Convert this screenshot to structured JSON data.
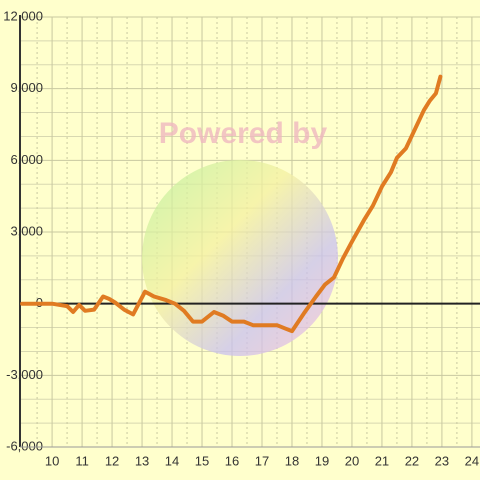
{
  "chart_data": {
    "type": "line",
    "watermark": "Powered by",
    "x": [
      9,
      10,
      10.5,
      10.7,
      10.9,
      11.1,
      11.4,
      11.7,
      11.9,
      12.1,
      12.4,
      12.7,
      13.1,
      13.4,
      13.8,
      14.1,
      14.4,
      14.7,
      15.0,
      15.4,
      15.7,
      16.0,
      16.4,
      16.7,
      17.0,
      17.5,
      17.8,
      18.0,
      18.4,
      18.8,
      19.1,
      19.4,
      19.7,
      20.0,
      20.4,
      20.7,
      21.0,
      21.3,
      21.5,
      21.8,
      22.1,
      22.4,
      22.6,
      22.8,
      22.95
    ],
    "series": [
      {
        "color": "#e07b22",
        "values": [
          0,
          0,
          -100,
          -350,
          -50,
          -300,
          -250,
          300,
          200,
          50,
          -250,
          -450,
          500,
          300,
          150,
          0,
          -300,
          -750,
          -750,
          -350,
          -500,
          -750,
          -750,
          -900,
          -900,
          -900,
          -1050,
          -1150,
          -400,
          300,
          800,
          1100,
          1900,
          2600,
          3500,
          4100,
          4900,
          5500,
          6100,
          6500,
          7300,
          8100,
          8500,
          8800,
          9500
        ]
      }
    ],
    "xlim": [
      8.93,
      24.27
    ],
    "xticks": [
      10,
      11,
      12,
      13,
      14,
      15,
      16,
      17,
      18,
      19,
      20,
      21,
      22,
      23,
      24
    ],
    "ylim": [
      -6000,
      12000
    ],
    "yticks": [
      {
        "value": -6000,
        "label": "-6,000"
      },
      {
        "value": -3000,
        "label": "-3,000"
      },
      0,
      {
        "value": 3000,
        "label": "3,000"
      },
      {
        "value": 6000,
        "label": "6,000"
      },
      {
        "value": 9000,
        "label": "9,000"
      },
      {
        "value": 12000,
        "label": "12,000"
      }
    ],
    "grid": true
  }
}
